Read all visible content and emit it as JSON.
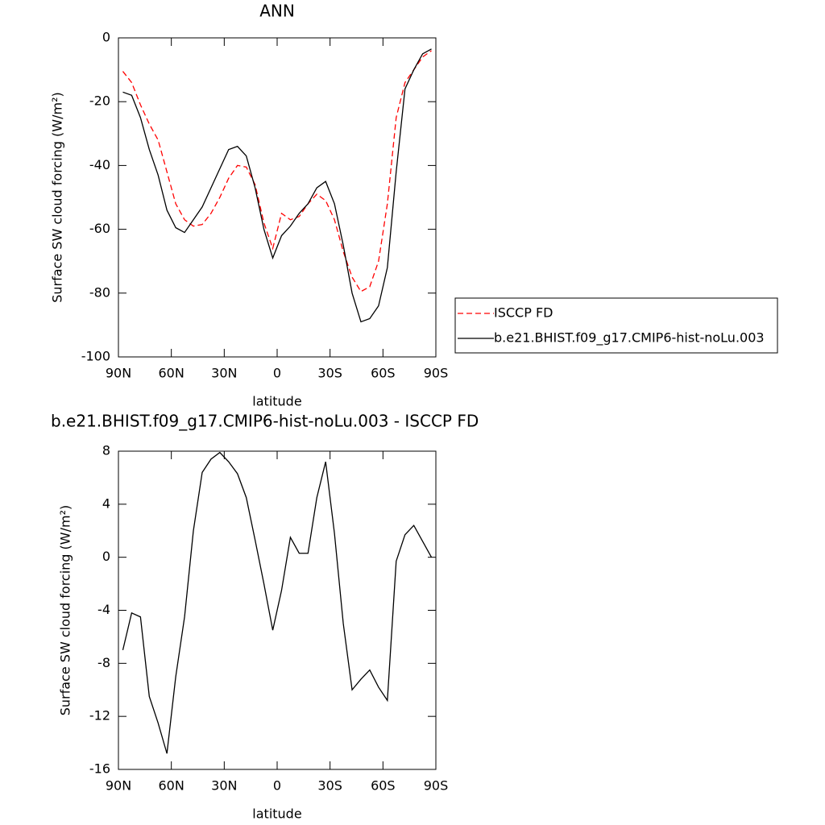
{
  "chart_data": [
    {
      "type": "line",
      "title": "ANN",
      "xlabel": "latitude",
      "ylabel": "Surface SW cloud forcing (W/m²)",
      "x": [
        87.5,
        82.5,
        77.5,
        72.5,
        67.5,
        62.5,
        57.5,
        52.5,
        47.5,
        42.5,
        37.5,
        32.5,
        27.5,
        22.5,
        17.5,
        12.5,
        7.5,
        2.5,
        -2.5,
        -7.5,
        -12.5,
        -17.5,
        -22.5,
        -27.5,
        -32.5,
        -37.5,
        -42.5,
        -47.5,
        -52.5,
        -57.5,
        -62.5,
        -67.5,
        -72.5,
        -77.5,
        -82.5,
        -87.5
      ],
      "series": [
        {
          "name": "ISCCP FD",
          "color": "#ff0000",
          "dashed": true,
          "values": [
            -10.5,
            -14,
            -21,
            -27,
            -32,
            -42,
            -52,
            -57,
            -59,
            -58.5,
            -55,
            -50,
            -44,
            -40,
            -40.5,
            -46,
            -58,
            -66,
            -55,
            -57,
            -56,
            -52,
            -49,
            -51,
            -57,
            -67,
            -75,
            -79.5,
            -78,
            -70,
            -52,
            -25,
            -14,
            -10,
            -6,
            -4
          ]
        },
        {
          "name": "b.e21.BHIST.f09_g17.CMIP6-hist-noLu.003",
          "color": "#000000",
          "dashed": false,
          "values": [
            -17,
            -18,
            -25,
            -35,
            -43,
            -54,
            -59.5,
            -61,
            -57,
            -53,
            -47,
            -41,
            -35,
            -34,
            -37,
            -47,
            -60,
            -69,
            -62,
            -59,
            -55,
            -52,
            -47,
            -45,
            -52,
            -65,
            -80,
            -89,
            -88,
            -84,
            -72,
            -42,
            -16,
            -10,
            -5,
            -3.5
          ]
        }
      ],
      "xlim": [
        90,
        -90
      ],
      "xticks": [
        {
          "value": 90,
          "label": "90N"
        },
        {
          "value": 60,
          "label": "60N"
        },
        {
          "value": 30,
          "label": "30N"
        },
        0,
        {
          "value": -30,
          "label": "30S"
        },
        {
          "value": -60,
          "label": "60S"
        },
        {
          "value": -90,
          "label": "90S"
        }
      ],
      "ylim": [
        -100,
        0
      ],
      "yticks": [
        -100,
        -80,
        -60,
        -40,
        -20,
        0
      ],
      "legend": "right"
    },
    {
      "type": "line",
      "title": "b.e21.BHIST.f09_g17.CMIP6-hist-noLu.003 - ISCCP FD",
      "xlabel": "latitude",
      "ylabel": "Surface SW cloud forcing (W/m²)",
      "x": [
        87.5,
        82.5,
        77.5,
        72.5,
        67.5,
        62.5,
        57.5,
        52.5,
        47.5,
        42.5,
        37.5,
        32.5,
        27.5,
        22.5,
        17.5,
        12.5,
        7.5,
        2.5,
        -2.5,
        -7.5,
        -12.5,
        -17.5,
        -22.5,
        -27.5,
        -32.5,
        -37.5,
        -42.5,
        -47.5,
        -52.5,
        -57.5,
        -62.5,
        -67.5,
        -72.5,
        -77.5,
        -82.5,
        -87.5
      ],
      "series": [
        {
          "color": "#000000",
          "dashed": false,
          "values": [
            -7,
            -4.2,
            -4.5,
            -10.5,
            -12.5,
            -14.8,
            -9,
            -4.5,
            2,
            6.4,
            7.4,
            7.9,
            7.2,
            6.3,
            4.5,
            1.3,
            -2,
            -5.5,
            -2.5,
            1.5,
            0.3,
            0.3,
            4.5,
            7.2,
            1.8,
            -5,
            -10,
            -9.2,
            -8.5,
            -9.8,
            -10.8,
            -0.3,
            1.7,
            2.4,
            1.2,
            0
          ]
        }
      ],
      "xlim": [
        90,
        -90
      ],
      "xticks": [
        {
          "value": 90,
          "label": "90N"
        },
        {
          "value": 60,
          "label": "60N"
        },
        {
          "value": 30,
          "label": "30N"
        },
        0,
        {
          "value": -30,
          "label": "30S"
        },
        {
          "value": -60,
          "label": "60S"
        },
        {
          "value": -90,
          "label": "90S"
        }
      ],
      "ylim": [
        -16,
        8
      ],
      "yticks": [
        -16,
        -12,
        -8,
        -4,
        0,
        4,
        8
      ]
    }
  ]
}
